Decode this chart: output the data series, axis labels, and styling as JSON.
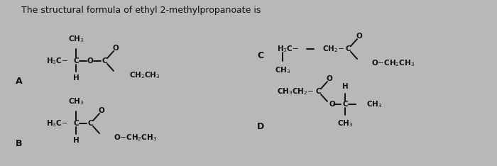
{
  "title": "The structural formula of ethyl 2-methylpropanoate is",
  "bg_color": "#b8b8b8",
  "text_color": "#111111",
  "label_A": "A",
  "label_B": "B",
  "label_C": "C",
  "label_D": "D",
  "font_size": 7.5,
  "font_size_label": 9,
  "font_size_title": 9
}
